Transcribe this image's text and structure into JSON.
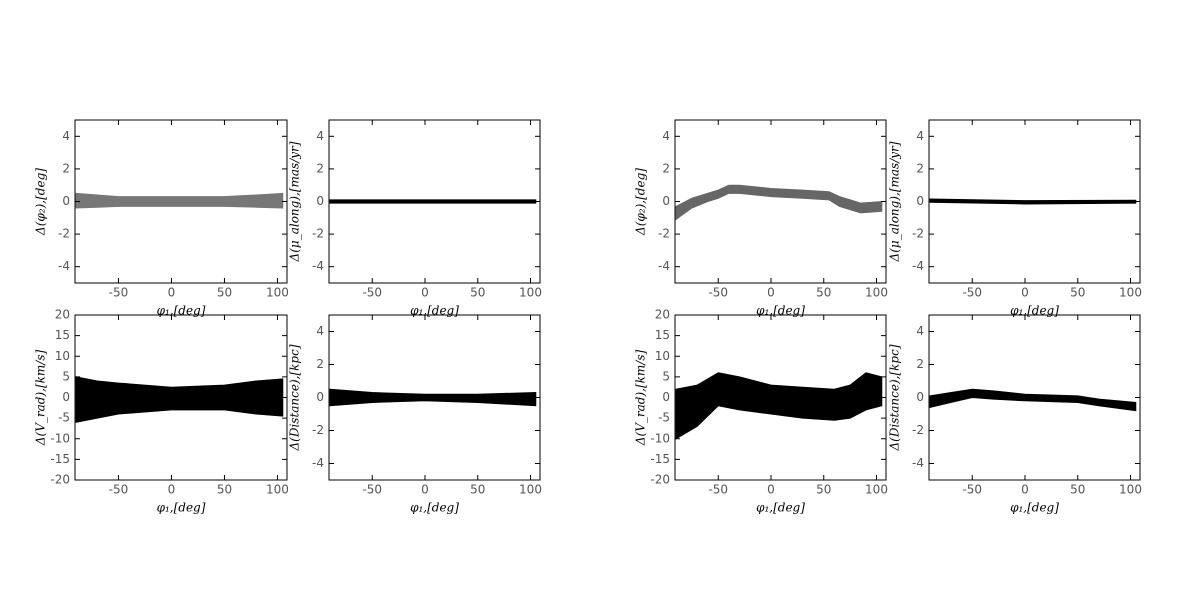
{
  "chart_data": [
    {
      "type": "band",
      "xlabel": "φ₁,[deg]",
      "ylabel": "Δ(φ₂),[deg]",
      "color": "#777777",
      "x": [
        -90,
        -70,
        -50,
        0,
        50,
        80,
        105
      ],
      "high": [
        0.5,
        0.4,
        0.3,
        0.3,
        0.3,
        0.4,
        0.5
      ],
      "low": [
        -0.4,
        -0.35,
        -0.3,
        -0.3,
        -0.3,
        -0.35,
        -0.4
      ],
      "xlim": [
        -91,
        109
      ],
      "ylim": [
        -5,
        5
      ],
      "xticks": [
        -50,
        0,
        50,
        100
      ],
      "yticks": [
        -4,
        -2,
        0,
        2,
        4
      ]
    },
    {
      "type": "band",
      "xlabel": "φ₁,[deg]",
      "ylabel": "Δ(μ_along),[mas/yr]",
      "color": "#000000",
      "x": [
        -90,
        0,
        105
      ],
      "high": [
        0.1,
        0.1,
        0.1
      ],
      "low": [
        -0.1,
        -0.1,
        -0.1
      ],
      "xlim": [
        -91,
        109
      ],
      "ylim": [
        -5,
        5
      ],
      "xticks": [
        -50,
        0,
        50,
        100
      ],
      "yticks": [
        -4,
        -2,
        0,
        2,
        4
      ]
    },
    {
      "type": "band",
      "xlabel": "φ₁,[deg]",
      "ylabel": "Δ(V_rad),[km/s]",
      "color": "#000000",
      "x": [
        -90,
        -70,
        -50,
        0,
        50,
        80,
        105
      ],
      "high": [
        5,
        4,
        3.5,
        2.5,
        3,
        4,
        4.5
      ],
      "low": [
        -6,
        -5,
        -4,
        -3,
        -3,
        -4,
        -4.5
      ],
      "xlim": [
        -91,
        109
      ],
      "ylim": [
        -20,
        20
      ],
      "xticks": [
        -50,
        0,
        50,
        100
      ],
      "yticks": [
        -20,
        -15,
        -10,
        -5,
        0,
        5,
        10,
        15,
        20
      ]
    },
    {
      "type": "band",
      "xlabel": "φ₁,[deg]",
      "ylabel": "Δ(Distance),[kpc]",
      "color": "#000000",
      "x": [
        -90,
        -50,
        0,
        50,
        105
      ],
      "high": [
        0.5,
        0.3,
        0.2,
        0.2,
        0.3
      ],
      "low": [
        -0.5,
        -0.3,
        -0.2,
        -0.3,
        -0.5
      ],
      "xlim": [
        -91,
        109
      ],
      "ylim": [
        -5,
        5
      ],
      "xticks": [
        -50,
        0,
        50,
        100
      ],
      "yticks": [
        -4,
        -2,
        0,
        2,
        4
      ]
    },
    {
      "type": "band",
      "xlabel": "φ₁,[deg]",
      "ylabel": "Δ(φ₂),[deg]",
      "color": "#666666",
      "x": [
        -90,
        -75,
        -60,
        -50,
        -40,
        -30,
        0,
        30,
        55,
        65,
        75,
        85,
        105
      ],
      "high": [
        -0.3,
        0.2,
        0.5,
        0.7,
        1.0,
        1.0,
        0.8,
        0.7,
        0.6,
        0.3,
        0.1,
        -0.1,
        0.0
      ],
      "low": [
        -1.1,
        -0.4,
        0.0,
        0.2,
        0.5,
        0.5,
        0.3,
        0.2,
        0.1,
        -0.3,
        -0.5,
        -0.7,
        -0.6
      ],
      "xlim": [
        -91,
        109
      ],
      "ylim": [
        -5,
        5
      ],
      "xticks": [
        -50,
        0,
        50,
        100
      ],
      "yticks": [
        -4,
        -2,
        0,
        2,
        4
      ]
    },
    {
      "type": "band",
      "xlabel": "φ₁,[deg]",
      "ylabel": "Δ(μ_along),[mas/yr]",
      "color": "#000000",
      "x": [
        -90,
        0,
        105
      ],
      "high": [
        0.15,
        0.05,
        0.08
      ],
      "low": [
        -0.05,
        -0.15,
        -0.1
      ],
      "xlim": [
        -91,
        109
      ],
      "ylim": [
        -5,
        5
      ],
      "xticks": [
        -50,
        0,
        50,
        100
      ],
      "yticks": [
        -4,
        -2,
        0,
        2,
        4
      ]
    },
    {
      "type": "band",
      "xlabel": "φ₁,[deg]",
      "ylabel": "Δ(V_rad),[km/s]",
      "color": "#000000",
      "x": [
        -90,
        -70,
        -50,
        -30,
        0,
        30,
        60,
        75,
        90,
        105
      ],
      "high": [
        2,
        3,
        6,
        5,
        3,
        2.5,
        2,
        3,
        6,
        5
      ],
      "low": [
        -10,
        -7,
        -2,
        -3,
        -4,
        -5,
        -5.5,
        -5,
        -3,
        -2
      ],
      "xlim": [
        -91,
        109
      ],
      "ylim": [
        -20,
        20
      ],
      "xticks": [
        -50,
        0,
        50,
        100
      ],
      "yticks": [
        -20,
        -15,
        -10,
        -5,
        0,
        5,
        10,
        15,
        20
      ]
    },
    {
      "type": "band",
      "xlabel": "φ₁,[deg]",
      "ylabel": "Δ(Distance),[kpc]",
      "color": "#000000",
      "x": [
        -90,
        -70,
        -50,
        -30,
        0,
        50,
        70,
        105
      ],
      "high": [
        0.1,
        0.3,
        0.5,
        0.4,
        0.2,
        0.1,
        -0.1,
        -0.3
      ],
      "low": [
        -0.6,
        -0.3,
        0.0,
        -0.1,
        -0.2,
        -0.3,
        -0.5,
        -0.8
      ],
      "xlim": [
        -91,
        109
      ],
      "ylim": [
        -5,
        5
      ],
      "xticks": [
        -50,
        0,
        50,
        100
      ],
      "yticks": [
        -4,
        -2,
        0,
        2,
        4
      ]
    }
  ]
}
